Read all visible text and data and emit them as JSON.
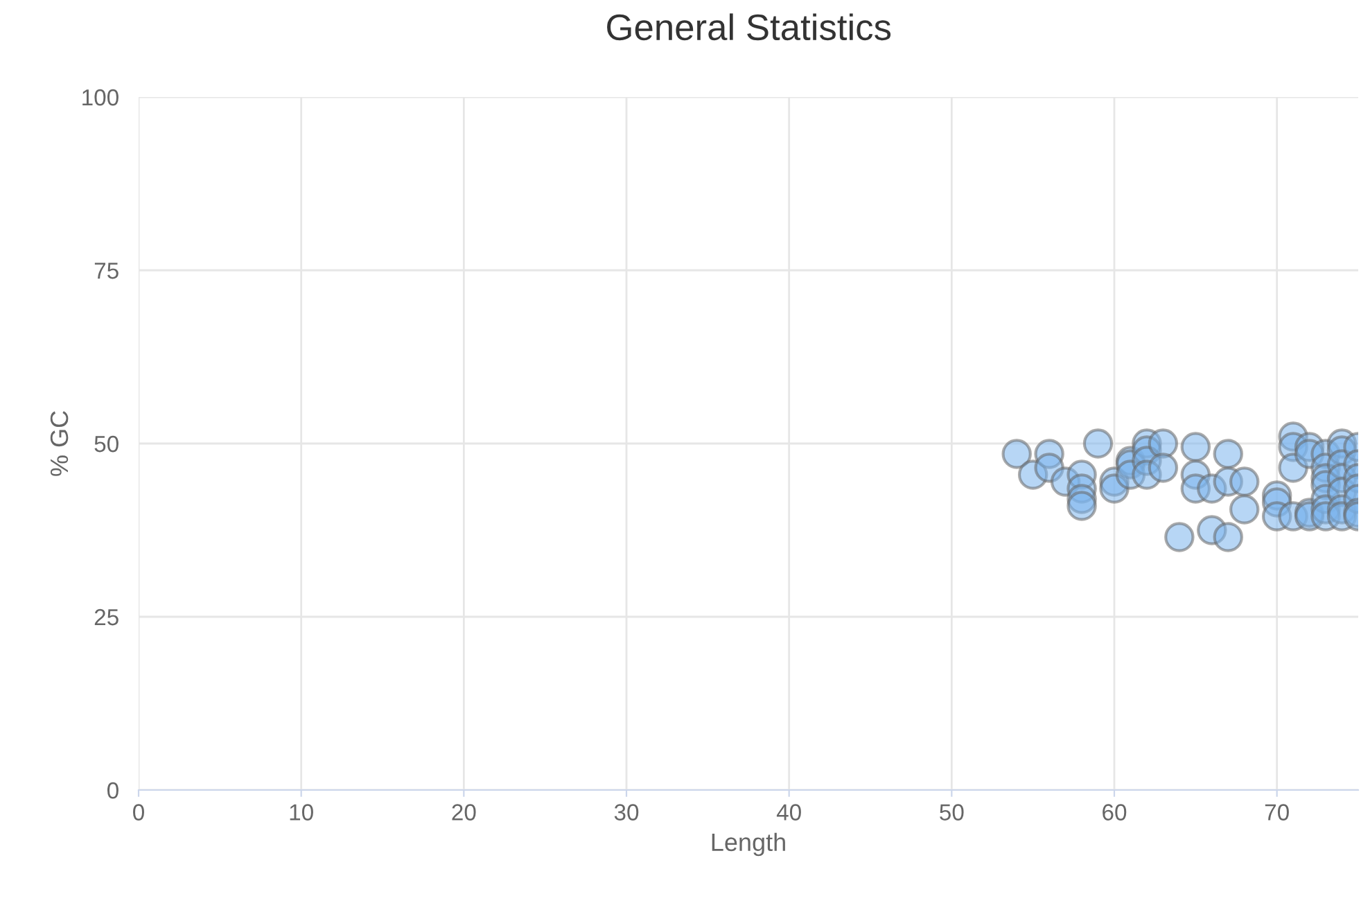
{
  "chart_data": {
    "type": "scatter",
    "title": "General Statistics",
    "xlabel": "Length",
    "ylabel": "% GC",
    "xlim": [
      0,
      75
    ],
    "ylim": [
      0,
      100
    ],
    "xticks": [
      0,
      10,
      20,
      30,
      40,
      50,
      60,
      70
    ],
    "yticks": [
      0,
      25,
      50,
      75,
      100
    ],
    "grid": true,
    "marker": "circle",
    "series": [
      {
        "color": "#7cb5ec",
        "x": [
          54,
          55,
          56,
          56,
          57,
          58,
          58,
          58,
          58,
          59,
          60,
          60,
          61,
          61,
          61,
          62,
          62,
          62,
          62,
          63,
          63,
          64,
          65,
          65,
          65,
          66,
          66,
          67,
          67,
          67,
          68,
          68,
          70,
          70,
          70,
          71,
          71,
          71,
          71,
          72,
          72,
          72,
          72,
          73,
          73,
          73,
          73,
          73,
          73,
          73,
          74,
          74,
          74,
          74,
          74,
          74,
          74,
          75,
          75,
          75,
          75,
          75,
          75,
          75
        ],
        "values": [
          48.5,
          45.5,
          48.5,
          46.5,
          44.5,
          45.5,
          43.5,
          42,
          41,
          50,
          44.5,
          43.5,
          47.5,
          47,
          45.5,
          50,
          49,
          47.5,
          45.5,
          50,
          46.5,
          36.5,
          49.5,
          45.5,
          43.5,
          43.5,
          37.5,
          48.5,
          44.5,
          36.5,
          44.5,
          40.5,
          42.5,
          41.5,
          39.5,
          51,
          49.5,
          46.5,
          39.5,
          49.5,
          48.5,
          40,
          39.5,
          48.5,
          46.5,
          45,
          44,
          42,
          40.5,
          39.5,
          50,
          49,
          47,
          45,
          43,
          40.5,
          39.5,
          49.5,
          47,
          45,
          43.5,
          42,
          40,
          39.5
        ]
      }
    ]
  }
}
